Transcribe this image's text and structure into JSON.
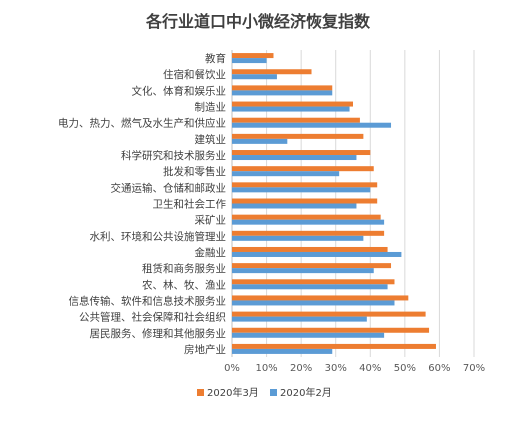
{
  "chart_data": {
    "type": "bar",
    "orientation": "horizontal",
    "title": "各行业道口中小微经济恢复指数",
    "xlabel": "",
    "ylabel": "",
    "xlim": [
      0,
      70
    ],
    "x_ticks": [
      "0%",
      "10%",
      "20%",
      "30%",
      "40%",
      "50%",
      "60%",
      "70%"
    ],
    "grid": true,
    "legend_position": "bottom",
    "categories": [
      "教育",
      "住宿和餐饮业",
      "文化、体育和娱乐业",
      "制造业",
      "电力、热力、燃气及水生产和供应业",
      "建筑业",
      "科学研究和技术服务业",
      "批发和零售业",
      "交通运输、仓储和邮政业",
      "卫生和社会工作",
      "采矿业",
      "水利、环境和公共设施管理业",
      "金融业",
      "租赁和商务服务业",
      "农、林、牧、渔业",
      "信息传输、软件和信息技术服务业",
      "公共管理、社会保障和社会组织",
      "居民服务、修理和其他服务业",
      "房地产业"
    ],
    "series": [
      {
        "name": "2020年3月",
        "color": "#ED7D31",
        "values": [
          12,
          23,
          29,
          35,
          37,
          38,
          40,
          41,
          42,
          42,
          43,
          44,
          45,
          46,
          47,
          51,
          56,
          57,
          59
        ]
      },
      {
        "name": "2020年2月",
        "color": "#5B9BD5",
        "values": [
          10,
          13,
          29,
          34,
          46,
          16,
          36,
          31,
          40,
          36,
          44,
          38,
          49,
          41,
          45,
          47,
          39,
          44,
          29
        ]
      }
    ]
  }
}
